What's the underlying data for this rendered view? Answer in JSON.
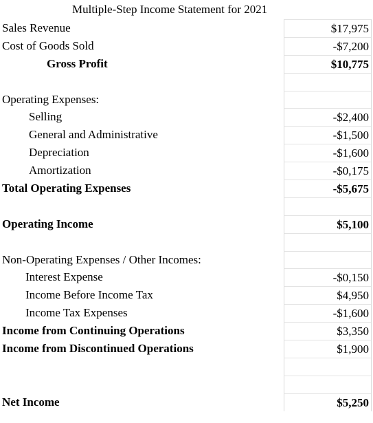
{
  "title": "Multiple-Step Income Statement for 2021",
  "rows": [
    {
      "label": "Sales Revenue",
      "value": "$17,975"
    },
    {
      "label": "Cost of Goods Sold",
      "value": "-$7,200"
    },
    {
      "label": "Gross Profit",
      "value": "$10,775"
    },
    {
      "label": "",
      "value": ""
    },
    {
      "label": "Operating Expenses:",
      "value": ""
    },
    {
      "label": "Selling",
      "value": "-$2,400"
    },
    {
      "label": "General and Administrative",
      "value": "-$1,500"
    },
    {
      "label": "Depreciation",
      "value": "-$1,600"
    },
    {
      "label": "Amortization",
      "value": "-$0,175"
    },
    {
      "label": "Total Operating Expenses",
      "value": "-$5,675"
    },
    {
      "label": "",
      "value": ""
    },
    {
      "label": "Operating Income",
      "value": "$5,100"
    },
    {
      "label": "",
      "value": ""
    },
    {
      "label": "Non-Operating Expenses / Other Incomes:",
      "value": ""
    },
    {
      "label": "Interest Expense",
      "value": "-$0,150"
    },
    {
      "label": "Income Before Income Tax",
      "value": "$4,950"
    },
    {
      "label": "Income Tax Expenses",
      "value": "-$1,600"
    },
    {
      "label": "Income from Continuing Operations",
      "value": "$3,350"
    },
    {
      "label": "Income from Discontinued Operations",
      "value": "$1,900"
    },
    {
      "label": "",
      "value": ""
    },
    {
      "label": "",
      "value": ""
    },
    {
      "label": "Net Income",
      "value": "$5,250"
    }
  ]
}
